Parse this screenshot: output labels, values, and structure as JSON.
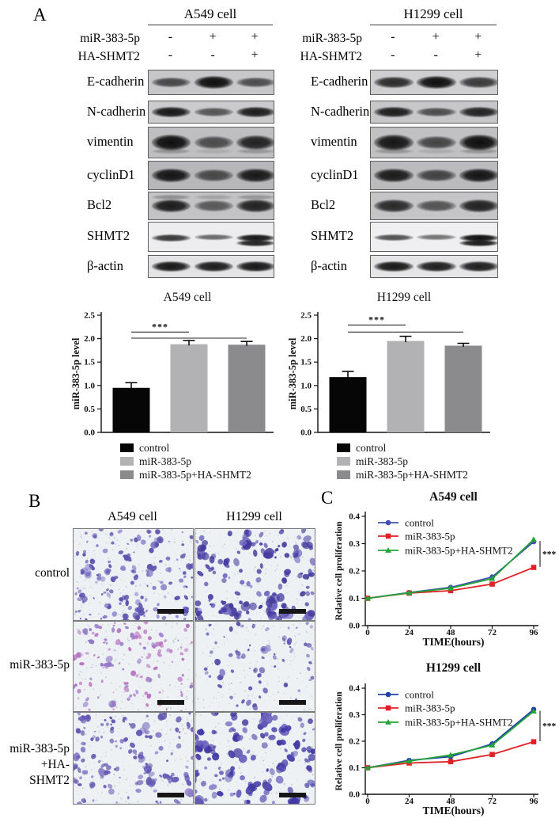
{
  "figure": {
    "panel_a_label": "A",
    "panel_b_label": "B",
    "panel_c_label": "C"
  },
  "western": {
    "groups": [
      {
        "title": "A549 cell",
        "conditions": [
          {
            "label": "miR-383-5p",
            "values": [
              "-",
              "+",
              "+"
            ]
          },
          {
            "label": "HA-SHMT2",
            "values": [
              "-",
              "-",
              "+"
            ]
          }
        ],
        "rows": [
          {
            "label": "E-cadherin",
            "bg": "#c7c7c9",
            "bands": [
              0.6,
              1.0,
              0.55
            ]
          },
          {
            "label": "N-cadherin",
            "bg": "#cbcbcd",
            "bands": [
              0.95,
              0.5,
              0.9
            ]
          },
          {
            "label": "vimentin",
            "bg": "#bfbfc1",
            "bands": [
              1.0,
              0.55,
              0.85
            ],
            "sub": [
              0.3,
              0.12,
              0.28
            ]
          },
          {
            "label": "cyclinD1",
            "bg": "#b7b7b9",
            "bands": [
              0.95,
              0.55,
              0.92
            ]
          },
          {
            "label": "Bcl2",
            "bg": "#c3c3c5",
            "bands": [
              0.9,
              0.45,
              0.85
            ],
            "subTop": [
              0.35,
              0.22,
              0.3
            ]
          },
          {
            "label": "SHMT2",
            "bg": "#ededef",
            "bands": [
              0.75,
              0.45,
              0.95
            ],
            "double": [
              0,
              0,
              1
            ]
          },
          {
            "label": "β-actin",
            "bg": "#e3e3e5",
            "bands": [
              0.95,
              0.92,
              0.95
            ]
          }
        ]
      },
      {
        "title": "H1299 cell",
        "conditions": [
          {
            "label": "miR-383-5p",
            "values": [
              "-",
              "+",
              "+"
            ]
          },
          {
            "label": "HA-SHMT2",
            "values": [
              "-",
              "-",
              "+"
            ]
          }
        ],
        "rows": [
          {
            "label": "E-cadherin",
            "bg": "#cfcfd1",
            "bands": [
              0.8,
              1.0,
              0.7
            ]
          },
          {
            "label": "N-cadherin",
            "bg": "#c7c7c9",
            "bands": [
              0.9,
              0.55,
              0.85
            ]
          },
          {
            "label": "vimentin",
            "bg": "#c1c1c3",
            "bands": [
              0.95,
              0.6,
              1.0
            ],
            "sub": [
              0.3,
              0.15,
              0.3
            ]
          },
          {
            "label": "cyclinD1",
            "bg": "#bbbbbd",
            "bands": [
              0.9,
              0.6,
              0.95
            ]
          },
          {
            "label": "Bcl2",
            "bg": "#c5c5c7",
            "bands": [
              0.8,
              0.5,
              0.85
            ]
          },
          {
            "label": "SHMT2",
            "bg": "#efeff1",
            "bands": [
              0.6,
              0.4,
              1.0
            ],
            "double": [
              0,
              0,
              1
            ]
          },
          {
            "label": "β-actin",
            "bg": "#e5e5e7",
            "bands": [
              0.95,
              0.9,
              0.9
            ]
          }
        ]
      }
    ]
  },
  "chart_data": [
    {
      "id": "bar-a549",
      "type": "bar",
      "title": "A549 cell",
      "ylabel": "miR-383-5p level",
      "categories": [
        "control",
        "miR-383-5p",
        "miR-383-5p+HA-SHMT2"
      ],
      "values": [
        0.95,
        1.88,
        1.87
      ],
      "errors": [
        0.11,
        0.08,
        0.07
      ],
      "colors": [
        "#060606",
        "#b2b2b4",
        "#8b8b8d"
      ],
      "ylim": [
        0,
        2.5
      ],
      "ytick_step": 0.5,
      "significance": [
        {
          "from": 0,
          "to": 1,
          "y": 2.14,
          "label": "***"
        },
        {
          "from": 0,
          "to": 2,
          "y": 2.01,
          "label": ""
        }
      ]
    },
    {
      "id": "bar-h1299",
      "type": "bar",
      "title": "H1299 cell",
      "ylabel": "miR-383-5p level",
      "categories": [
        "control",
        "miR-383-5p",
        "miR-383-5p+HA-SHMT2"
      ],
      "values": [
        1.18,
        1.95,
        1.85
      ],
      "errors": [
        0.12,
        0.1,
        0.05
      ],
      "colors": [
        "#060606",
        "#b2b2b4",
        "#8b8b8d"
      ],
      "ylim": [
        0,
        2.5
      ],
      "ytick_step": 0.5,
      "significance": [
        {
          "from": 0,
          "to": 1,
          "y": 2.29,
          "label": "***"
        },
        {
          "from": 0,
          "to": 2,
          "y": 2.14,
          "label": ""
        }
      ]
    },
    {
      "id": "line-a549",
      "type": "line",
      "title": "A549 cell",
      "xlabel": "TIME(hours)",
      "ylabel": "Relative cell proliferation",
      "x": [
        0,
        24,
        48,
        72,
        96
      ],
      "ylim": [
        0,
        0.4
      ],
      "ytick_step": 0.1,
      "series": [
        {
          "name": "control",
          "color": "#4150b0",
          "marker": "circle",
          "values": [
            0.1,
            0.121,
            0.14,
            0.178,
            0.307
          ]
        },
        {
          "name": "miR-383-5p",
          "color": "#e02126",
          "marker": "square",
          "values": [
            0.1,
            0.119,
            0.128,
            0.152,
            0.213
          ]
        },
        {
          "name": "miR-383-5p+HA-SHMT2",
          "color": "#23a338",
          "marker": "triangle",
          "values": [
            0.1,
            0.12,
            0.137,
            0.172,
            0.315
          ]
        }
      ],
      "significance": {
        "label": "***",
        "y1": 0.215,
        "y2": 0.31
      }
    },
    {
      "id": "line-h1299",
      "type": "line",
      "title": "H1299 cell",
      "xlabel": "TIME(hours)",
      "ylabel": "Relative cell proliferation",
      "x": [
        0,
        24,
        48,
        72,
        96
      ],
      "ylim": [
        0,
        0.4
      ],
      "ytick_step": 0.1,
      "series": [
        {
          "name": "control",
          "color": "#2040aa",
          "marker": "circle",
          "values": [
            0.1,
            0.128,
            0.142,
            0.19,
            0.32
          ]
        },
        {
          "name": "miR-383-5p",
          "color": "#e02126",
          "marker": "square",
          "values": [
            0.1,
            0.118,
            0.123,
            0.15,
            0.198
          ]
        },
        {
          "name": "miR-383-5p+HA-SHMT2",
          "color": "#23a338",
          "marker": "triangle",
          "values": [
            0.1,
            0.125,
            0.148,
            0.185,
            0.313
          ]
        }
      ],
      "significance": {
        "label": "***",
        "y1": 0.2,
        "y2": 0.315
      }
    }
  ],
  "transwell": {
    "col_headers": [
      "A549 cell",
      "H1299 cell"
    ],
    "row_labels": [
      [
        "control"
      ],
      [
        "miR-383-5p"
      ],
      [
        "miR-383-5p",
        "+HA-SHMT2"
      ]
    ],
    "micrograph_bg": "#edf1f4",
    "scale_bar_color": "#161616",
    "cells": [
      {
        "seed": 11,
        "count": 120,
        "clusters": 14,
        "rmin": 1.1,
        "rmax": 3.4,
        "color": "#5b52ae",
        "accent": "#8d84cc"
      },
      {
        "seed": 22,
        "count": 95,
        "clusters": 18,
        "rmin": 1.5,
        "rmax": 4.4,
        "color": "#463c9f",
        "accent": "#7168c0"
      },
      {
        "seed": 33,
        "count": 105,
        "clusters": 10,
        "rmin": 1.0,
        "rmax": 3.0,
        "color": "#b873c0",
        "accent": "#9379c7"
      },
      {
        "seed": 44,
        "count": 50,
        "clusters": 7,
        "rmin": 1.1,
        "rmax": 3.2,
        "color": "#5d56af",
        "accent": "#8a82c8"
      },
      {
        "seed": 55,
        "count": 110,
        "clusters": 12,
        "rmin": 1.2,
        "rmax": 3.6,
        "color": "#6357b2",
        "accent": "#8d7fc9"
      },
      {
        "seed": 66,
        "count": 100,
        "clusters": 16,
        "rmin": 1.7,
        "rmax": 4.8,
        "color": "#443aa6",
        "accent": "#6c63bd"
      }
    ]
  }
}
